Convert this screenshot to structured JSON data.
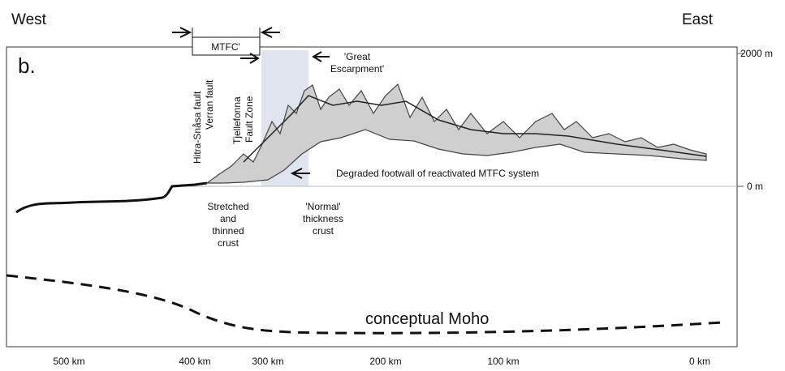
{
  "header": {
    "west": "West",
    "east": "East"
  },
  "panel_label": "b.",
  "bracket_label": "MTFC'",
  "elevation_labels": [
    "2000 m",
    "0 m"
  ],
  "fault_labels": [
    "Hitra-Snåsa fault",
    "Verran fault",
    "Tjellefonna",
    "Fault Zone"
  ],
  "escarpment_label": [
    "'Great",
    "Escarpment'"
  ],
  "footwall_label": "Degraded footwall of reactivated MTFC system",
  "stretched_label": [
    "Stretched",
    "and",
    "thinned",
    "crust"
  ],
  "normal_label": [
    "'Normal'",
    "thickness",
    "crust"
  ],
  "moho_label": "conceptual Moho",
  "x_axis_labels": [
    "500 km",
    "400 km",
    "300 km",
    "200 km",
    "100 km",
    "0 km"
  ]
}
